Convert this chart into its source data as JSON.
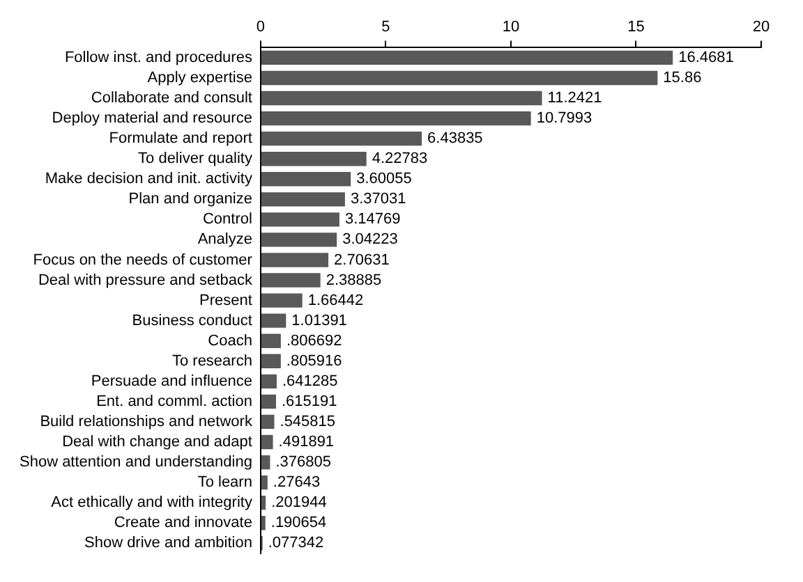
{
  "chart_data": {
    "type": "bar",
    "orientation": "horizontal",
    "categories": [
      "Follow inst. and procedures",
      "Apply expertise",
      "Collaborate and consult",
      "Deploy material and resource",
      "Formulate and report",
      "To deliver quality",
      "Make decision and init. activity",
      "Plan and organize",
      "Control",
      "Analyze",
      "Focus on the needs of customer",
      "Deal with pressure and setback",
      "Present",
      "Business conduct",
      "Coach",
      "To research",
      "Persuade and influence",
      "Ent. and comml. action",
      "Build relationships and network",
      "Deal with change and adapt",
      "Show attention and understanding",
      "To learn",
      "Act ethically and with integrity",
      "Create and innovate",
      "Show drive and ambition"
    ],
    "values": [
      16.4681,
      15.86,
      11.2421,
      10.7993,
      6.43835,
      4.22783,
      3.60055,
      3.37031,
      3.14769,
      3.04223,
      2.70631,
      2.38885,
      1.66442,
      1.01391,
      0.806692,
      0.805916,
      0.641285,
      0.615191,
      0.545815,
      0.491891,
      0.376805,
      0.27643,
      0.201944,
      0.190654,
      0.077342
    ],
    "value_labels": [
      "16.4681",
      "15.86",
      "11.2421",
      "10.7993",
      "6.43835",
      "4.22783",
      "3.60055",
      "3.37031",
      "3.14769",
      "3.04223",
      "2.70631",
      "2.38885",
      "1.66442",
      "1.01391",
      ".806692",
      ".805916",
      ".641285",
      ".615191",
      ".545815",
      ".491891",
      ".376805",
      ".27643",
      ".201944",
      ".190654",
      ".077342"
    ],
    "color": "#595959",
    "xlim": [
      0,
      20
    ],
    "xticks": [
      0,
      5,
      10,
      15,
      20
    ],
    "grid": false,
    "legend": false
  }
}
